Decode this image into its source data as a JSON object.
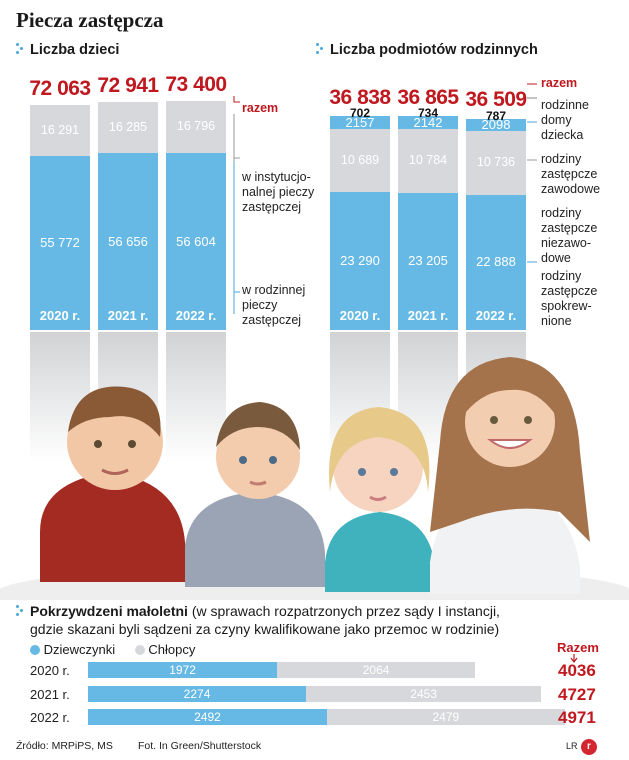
{
  "title": "Piecza zastępcza",
  "left_chart_title": "Liczba dzieci",
  "right_chart_title": "Liczba podmiotów rodzinnych",
  "colors": {
    "blue": "#66b9e5",
    "grey": "#d6d8db",
    "red": "#c0181f",
    "accent": "#4aa8d8"
  },
  "chart_data": [
    {
      "type": "bar",
      "title": "Liczba dzieci",
      "categories": [
        "2020 r.",
        "2021 r.",
        "2022 r."
      ],
      "series": [
        {
          "name": "w rodzinnej pieczy zastępczej",
          "values": [
            55772,
            56656,
            56604
          ]
        },
        {
          "name": "w instytucjonalnej pieczy zastępczej",
          "values": [
            16291,
            16285,
            16796
          ]
        }
      ],
      "totals": [
        72063,
        72941,
        73400
      ],
      "totals_display": [
        "72 063",
        "72 941",
        "73 400"
      ],
      "values_display": [
        [
          "55 772",
          "56 656",
          "56 604"
        ],
        [
          "16 291",
          "16 285",
          "16 796"
        ]
      ],
      "legend": [
        "razem",
        "w instytucjo-\nnalnej pieczy\nzastępczej",
        "w rodzinnej\npieczy\nzastępczej"
      ]
    },
    {
      "type": "bar",
      "title": "Liczba podmiotów rodzinnych",
      "categories": [
        "2020 r.",
        "2021 r.",
        "2022 r."
      ],
      "series": [
        {
          "name": "rodziny zastępcze spokrewnione",
          "values": [
            23290,
            23205,
            22888
          ]
        },
        {
          "name": "rodziny zastępcze niezawodowe",
          "values": [
            10689,
            10784,
            10736
          ]
        },
        {
          "name": "rodziny zastępcze zawodowe",
          "values": [
            2157,
            2142,
            2098
          ]
        },
        {
          "name": "rodzinne domy dziecka",
          "values": [
            702,
            734,
            787
          ]
        }
      ],
      "totals": [
        36838,
        36865,
        36509
      ],
      "totals_display": [
        "36 838",
        "36 865",
        "36 509"
      ],
      "values_display": [
        [
          "23 290",
          "23 205",
          "22 888"
        ],
        [
          "10 689",
          "10 784",
          "10 736"
        ],
        [
          "2157",
          "2142",
          "2098"
        ],
        [
          "702",
          "734",
          "787"
        ]
      ],
      "legend": [
        "razem",
        "rodzinne\ndomy\ndziecka",
        "rodziny\nzastępcze\nzawodowe",
        "rodziny\nzastępcze\nniezawo-\ndowe",
        "rodziny\nzastępcze\nspokrew-\nnione"
      ]
    },
    {
      "type": "bar",
      "orientation": "horizontal",
      "title": "Pokrzywdzeni małoletni",
      "subtitle": "(w sprawach rozpatrzonych przez sądy I instancji, gdzie skazani byli sądzeni za czyny kwalifikowane jako przemoc w rodzinie)",
      "categories": [
        "2020 r.",
        "2021 r.",
        "2022 r."
      ],
      "series": [
        {
          "name": "Dziewczynki",
          "values": [
            1972,
            2274,
            2492
          ]
        },
        {
          "name": "Chłopcy",
          "values": [
            2064,
            2453,
            2479
          ]
        }
      ],
      "totals": [
        4036,
        4727,
        4971
      ],
      "totals_label": "Razem"
    }
  ],
  "bottom": {
    "title_bold": "Pokrzywdzeni małoletni",
    "title_rest_1": " (w sprawach rozpatrzonych przez sądy I instancji,",
    "title_rest_2": "gdzie skazani byli sądzeni za czyny kwalifikowane jako przemoc w rodzinie)"
  },
  "source": "Źródło: MRPiPS, MS",
  "photo_credit": "Fot. In Green/Shutterstock",
  "author": "LR",
  "logo": "rp"
}
